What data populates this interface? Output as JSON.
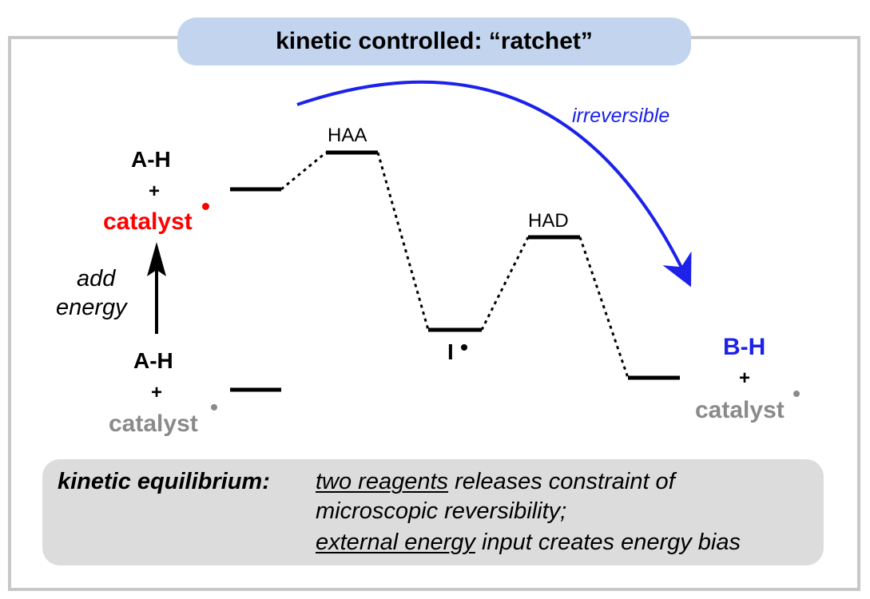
{
  "title": "kinetic controlled: “ratchet”",
  "colors": {
    "frame": "#c8c8c8",
    "title_bg": "#c3d4ee",
    "red": "#ff0000",
    "blue": "#1c22e8",
    "gray": "#8a8a8a",
    "summary_bg": "#dcdcdc"
  },
  "left": {
    "top_reactant": "A-H",
    "top_plus": "+",
    "top_catalyst": "catalyst",
    "arrow_label_1": "add",
    "arrow_label_2": "energy",
    "bottom_reactant": "A-H",
    "bottom_plus": "+",
    "bottom_catalyst": "catalyst"
  },
  "diagram": {
    "ts1_label": "HAA",
    "intermediate_label": "I",
    "ts2_label": "HAD",
    "arc_label": "irreversible"
  },
  "right": {
    "product": "B-H",
    "plus": "+",
    "catalyst": "catalyst"
  },
  "summary": {
    "heading": "kinetic equilibrium:",
    "line1_underlined": "two reagents",
    "line1_rest": " releases constraint of",
    "line2": "microscopic reversibility;",
    "line3_underlined": "external energy",
    "line3_rest": " input creates energy bias"
  }
}
